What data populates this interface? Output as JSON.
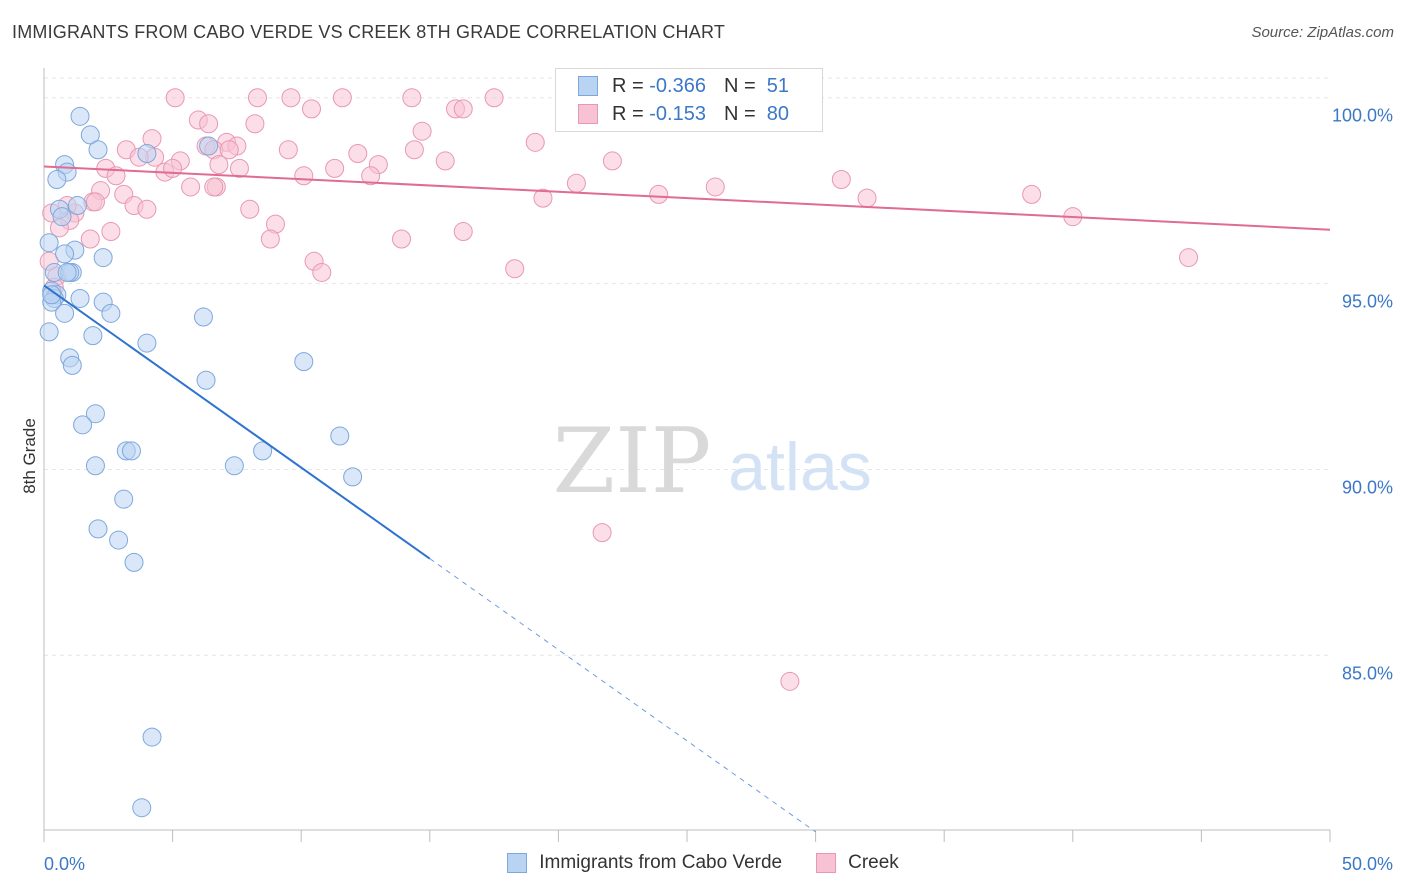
{
  "title": "IMMIGRANTS FROM CABO VERDE VS CREEK 8TH GRADE CORRELATION CHART",
  "source": "Source: ZipAtlas.com",
  "watermark": {
    "zip": "ZIP",
    "atlas": "atlas"
  },
  "colors": {
    "blue_fill": "#b9d3f2",
    "blue_stroke": "#7ea8dc",
    "blue_line": "#2f73d0",
    "pink_fill": "#f7c3d4",
    "pink_stroke": "#e898b4",
    "pink_line": "#e06b93",
    "tick_text": "#3b78c8",
    "grid": "#e6e6e6"
  },
  "legend": {
    "rows": [
      {
        "r_label": "R =",
        "r_value": "-0.366",
        "n_label": "N =",
        "n_value": "51"
      },
      {
        "r_label": "R =",
        "r_value": "-0.153",
        "n_label": "N =",
        "n_value": "80"
      }
    ]
  },
  "bottom_legend": {
    "series1": "Immigrants from Cabo Verde",
    "series2": "Creek"
  },
  "chart_data": {
    "type": "scatter",
    "title": "IMMIGRANTS FROM CABO VERDE VS CREEK 8TH GRADE CORRELATION CHART",
    "xlabel": "",
    "ylabel": "8th Grade",
    "xlim": [
      0,
      50
    ],
    "ylim": [
      80.3,
      100.8
    ],
    "x_tick_labels": [
      "0.0%",
      "50.0%"
    ],
    "y_ticks": [
      85,
      90,
      95,
      100
    ],
    "y_tick_labels": [
      "85.0%",
      "90.0%",
      "95.0%",
      "100.0%"
    ],
    "grid": true,
    "legend_position": "top-center",
    "series": [
      {
        "name": "Immigrants from Cabo Verde",
        "R": -0.366,
        "N": 51,
        "points": [
          [
            1.4,
            99.5
          ],
          [
            1.8,
            99.0
          ],
          [
            2.1,
            98.6
          ],
          [
            0.8,
            98.2
          ],
          [
            0.9,
            98.0
          ],
          [
            0.5,
            97.8
          ],
          [
            1.3,
            97.1
          ],
          [
            0.6,
            97.0
          ],
          [
            0.7,
            96.8
          ],
          [
            0.2,
            96.1
          ],
          [
            1.2,
            95.9
          ],
          [
            0.8,
            95.8
          ],
          [
            2.3,
            95.7
          ],
          [
            0.4,
            95.3
          ],
          [
            1.1,
            95.3
          ],
          [
            1.0,
            95.3
          ],
          [
            0.3,
            94.8
          ],
          [
            0.5,
            94.7
          ],
          [
            0.4,
            94.6
          ],
          [
            0.3,
            94.5
          ],
          [
            1.4,
            94.6
          ],
          [
            2.3,
            94.5
          ],
          [
            2.6,
            94.2
          ],
          [
            0.8,
            94.2
          ],
          [
            6.2,
            94.1
          ],
          [
            0.2,
            93.7
          ],
          [
            1.9,
            93.6
          ],
          [
            4.0,
            93.4
          ],
          [
            1.0,
            93.0
          ],
          [
            1.1,
            92.8
          ],
          [
            10.1,
            92.9
          ],
          [
            6.3,
            92.4
          ],
          [
            2.0,
            91.5
          ],
          [
            1.5,
            91.2
          ],
          [
            11.5,
            90.9
          ],
          [
            3.2,
            90.5
          ],
          [
            3.4,
            90.5
          ],
          [
            8.5,
            90.5
          ],
          [
            2.0,
            90.1
          ],
          [
            7.4,
            90.1
          ],
          [
            12.0,
            89.8
          ],
          [
            3.1,
            89.2
          ],
          [
            2.1,
            88.4
          ],
          [
            2.9,
            88.1
          ],
          [
            3.5,
            87.5
          ],
          [
            4.2,
            82.8
          ],
          [
            3.8,
            80.9
          ],
          [
            6.4,
            98.7
          ],
          [
            4.0,
            98.5
          ],
          [
            0.3,
            94.7
          ],
          [
            0.9,
            95.3
          ]
        ],
        "trend": {
          "x0": 0,
          "y0": 94.95,
          "x1": 15.0,
          "y1": 87.6,
          "dash_to_x": 30.0,
          "dash_to_y": 80.25
        }
      },
      {
        "name": "Creek",
        "R": -0.153,
        "N": 80,
        "points": [
          [
            5.1,
            100.0
          ],
          [
            8.3,
            100.0
          ],
          [
            9.6,
            100.0
          ],
          [
            11.6,
            100.0
          ],
          [
            14.3,
            100.0
          ],
          [
            17.5,
            100.0
          ],
          [
            21.7,
            100.0
          ],
          [
            22.5,
            100.0
          ],
          [
            23.4,
            100.0
          ],
          [
            10.4,
            99.7
          ],
          [
            16.0,
            99.7
          ],
          [
            16.3,
            99.7
          ],
          [
            6.0,
            99.4
          ],
          [
            6.4,
            99.3
          ],
          [
            8.2,
            99.3
          ],
          [
            14.7,
            99.1
          ],
          [
            4.2,
            98.9
          ],
          [
            19.1,
            98.8
          ],
          [
            6.3,
            98.7
          ],
          [
            7.1,
            98.8
          ],
          [
            7.5,
            98.7
          ],
          [
            3.2,
            98.6
          ],
          [
            6.6,
            98.6
          ],
          [
            7.2,
            98.6
          ],
          [
            9.5,
            98.6
          ],
          [
            12.2,
            98.5
          ],
          [
            14.4,
            98.6
          ],
          [
            4.3,
            98.4
          ],
          [
            3.7,
            98.4
          ],
          [
            5.3,
            98.3
          ],
          [
            6.8,
            98.2
          ],
          [
            13.0,
            98.2
          ],
          [
            15.6,
            98.3
          ],
          [
            22.1,
            98.3
          ],
          [
            2.4,
            98.1
          ],
          [
            7.6,
            98.1
          ],
          [
            11.3,
            98.1
          ],
          [
            4.7,
            98.0
          ],
          [
            2.8,
            97.9
          ],
          [
            10.1,
            97.9
          ],
          [
            12.7,
            97.9
          ],
          [
            31.0,
            97.8
          ],
          [
            20.7,
            97.7
          ],
          [
            5.7,
            97.6
          ],
          [
            6.7,
            97.6
          ],
          [
            26.1,
            97.6
          ],
          [
            2.2,
            97.5
          ],
          [
            3.1,
            97.4
          ],
          [
            19.4,
            97.3
          ],
          [
            23.9,
            97.4
          ],
          [
            32.0,
            97.3
          ],
          [
            38.4,
            97.4
          ],
          [
            1.9,
            97.2
          ],
          [
            3.5,
            97.1
          ],
          [
            4.0,
            97.0
          ],
          [
            8.0,
            97.0
          ],
          [
            1.2,
            96.9
          ],
          [
            0.9,
            97.1
          ],
          [
            0.3,
            96.9
          ],
          [
            1.0,
            96.7
          ],
          [
            9.0,
            96.6
          ],
          [
            0.6,
            96.5
          ],
          [
            2.6,
            96.4
          ],
          [
            16.3,
            96.4
          ],
          [
            1.8,
            96.2
          ],
          [
            8.8,
            96.2
          ],
          [
            13.9,
            96.2
          ],
          [
            40.0,
            96.8
          ],
          [
            10.5,
            95.6
          ],
          [
            10.8,
            95.3
          ],
          [
            18.3,
            95.4
          ],
          [
            44.5,
            95.7
          ],
          [
            0.2,
            95.6
          ],
          [
            0.5,
            95.2
          ],
          [
            0.4,
            94.9
          ],
          [
            21.7,
            88.3
          ],
          [
            29.0,
            84.3
          ],
          [
            6.6,
            97.6
          ],
          [
            2.0,
            97.2
          ],
          [
            5.0,
            98.1
          ]
        ],
        "trend": {
          "x0": 0,
          "y0": 98.15,
          "x1": 50,
          "y1": 96.45
        }
      }
    ]
  }
}
